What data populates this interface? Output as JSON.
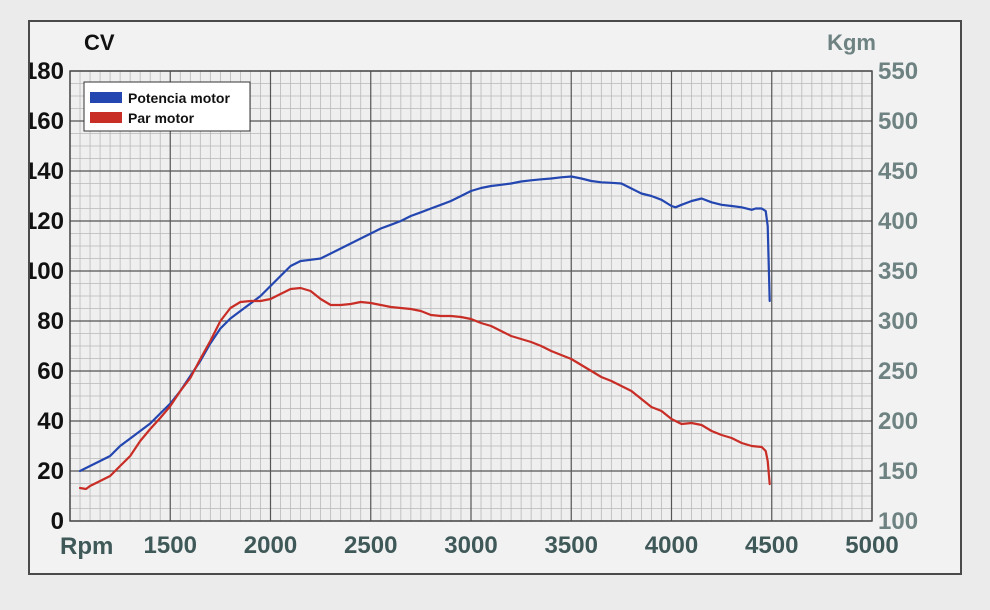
{
  "chart_data": {
    "type": "line",
    "xlabel": "Rpm",
    "ylabel_left": "CV",
    "ylabel_right": "Kgm",
    "xlim": [
      1000,
      5000
    ],
    "x_ticks": [
      1500,
      2000,
      2500,
      3000,
      3500,
      4000,
      4500,
      5000
    ],
    "ylim_left": [
      0,
      180
    ],
    "y_ticks_left": [
      0,
      20,
      40,
      60,
      80,
      100,
      120,
      140,
      160,
      180
    ],
    "ylim_right": [
      100,
      550
    ],
    "y_ticks_right": [
      100,
      150,
      200,
      250,
      300,
      350,
      400,
      450,
      500,
      550
    ],
    "grid": true,
    "legend_position": "top-left",
    "series": [
      {
        "name": "Potencia motor",
        "axis": "left",
        "color": "#2346b0",
        "x": [
          1050,
          1100,
          1150,
          1200,
          1250,
          1300,
          1350,
          1400,
          1450,
          1500,
          1550,
          1600,
          1650,
          1700,
          1750,
          1800,
          1850,
          1900,
          1950,
          2000,
          2050,
          2100,
          2150,
          2200,
          2250,
          2300,
          2350,
          2400,
          2450,
          2500,
          2550,
          2600,
          2650,
          2700,
          2750,
          2800,
          2850,
          2900,
          2950,
          3000,
          3050,
          3100,
          3150,
          3200,
          3250,
          3300,
          3350,
          3400,
          3450,
          3500,
          3550,
          3600,
          3650,
          3700,
          3750,
          3800,
          3850,
          3900,
          3950,
          4000,
          4020,
          4050,
          4100,
          4150,
          4200,
          4250,
          4300,
          4350,
          4400,
          4420,
          4450,
          4470,
          4480,
          4490
        ],
        "y": [
          20,
          22,
          24,
          26,
          30,
          33,
          36,
          39,
          43,
          47,
          52,
          58,
          64,
          71,
          77,
          81,
          84,
          87,
          90,
          94,
          98,
          102,
          104,
          104.5,
          105,
          107,
          109,
          111,
          113,
          115,
          117,
          118.5,
          120,
          122,
          123.5,
          125,
          126.5,
          128,
          130,
          132,
          133.2,
          134,
          134.5,
          135,
          135.8,
          136.3,
          136.7,
          137,
          137.5,
          137.8,
          137,
          136,
          135.5,
          135.3,
          135,
          133,
          131,
          130,
          128.5,
          126,
          125.5,
          126.5,
          128,
          129,
          127.5,
          126.5,
          126,
          125.5,
          124.5,
          125,
          125,
          124,
          118,
          88
        ]
      },
      {
        "name": "Par motor",
        "axis": "right",
        "color": "#c82d26",
        "x": [
          1050,
          1080,
          1100,
          1150,
          1200,
          1250,
          1300,
          1350,
          1400,
          1450,
          1500,
          1550,
          1600,
          1650,
          1700,
          1750,
          1800,
          1850,
          1900,
          1950,
          2000,
          2050,
          2100,
          2150,
          2200,
          2250,
          2300,
          2350,
          2400,
          2450,
          2500,
          2550,
          2600,
          2650,
          2700,
          2750,
          2800,
          2850,
          2900,
          2950,
          3000,
          3050,
          3100,
          3150,
          3200,
          3250,
          3300,
          3350,
          3400,
          3450,
          3500,
          3550,
          3600,
          3650,
          3700,
          3750,
          3800,
          3850,
          3900,
          3950,
          4000,
          4050,
          4100,
          4150,
          4200,
          4250,
          4300,
          4350,
          4400,
          4450,
          4470,
          4480,
          4490
        ],
        "y": [
          133,
          132,
          135,
          140,
          145,
          155,
          165,
          180,
          192,
          203,
          215,
          230,
          243,
          262,
          280,
          300,
          313,
          319,
          320,
          320,
          322,
          327,
          332,
          333,
          330,
          322,
          316,
          316,
          317,
          319,
          318,
          316,
          314,
          313,
          312,
          310,
          306,
          305,
          305,
          304,
          302,
          298,
          295,
          290,
          285,
          282,
          279,
          275,
          270,
          266,
          262,
          256,
          250,
          244,
          240,
          235,
          230,
          222,
          214,
          210,
          202,
          197,
          198,
          196,
          190,
          186,
          183,
          178,
          175,
          174,
          170,
          160,
          137
        ]
      }
    ]
  }
}
